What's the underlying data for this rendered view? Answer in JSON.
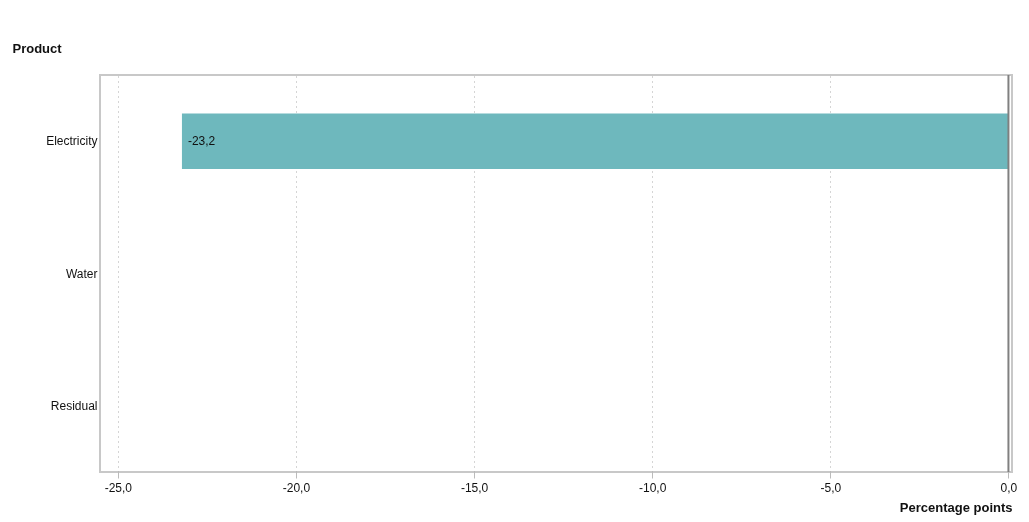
{
  "chart_data": {
    "type": "bar",
    "orientation": "horizontal",
    "ylabel": "Product",
    "xlabel": "Percentage points",
    "categories": [
      "Electricity",
      "Water",
      "Residual"
    ],
    "values": [
      -23.2,
      null,
      null
    ],
    "color": "#6eb8bd",
    "value_labels": [
      "-23,2",
      null,
      null
    ],
    "xlim": [
      -25.5,
      0.1
    ],
    "xticks": [
      {
        "value": -25,
        "label": "-25,0"
      },
      {
        "value": -20,
        "label": "-20,0"
      },
      {
        "value": -15,
        "label": "-15,0"
      },
      {
        "value": -10,
        "label": "-10,0"
      },
      {
        "value": -5,
        "label": "-5,0"
      },
      {
        "value": 0,
        "label": "0,0"
      }
    ],
    "grid": "x",
    "ref_lines": [
      {
        "axis": "x",
        "value": 0,
        "color": "#808080"
      }
    ]
  }
}
